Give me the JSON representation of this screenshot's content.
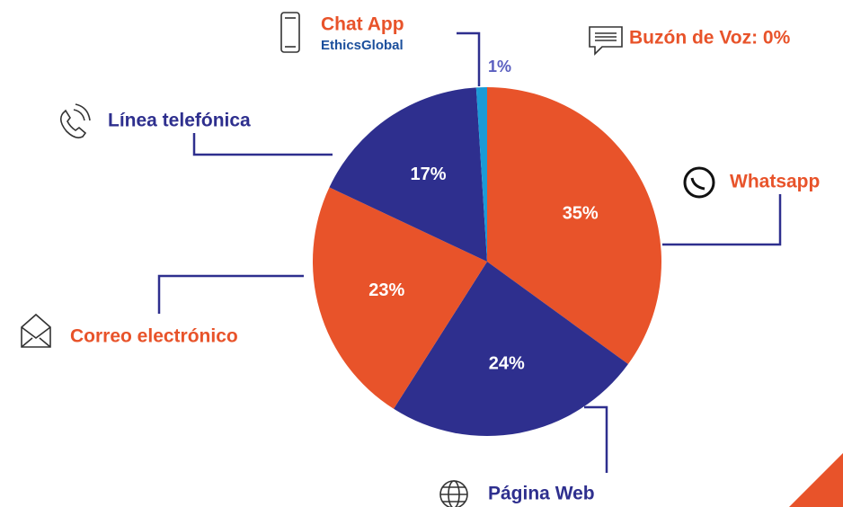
{
  "chart_data": {
    "type": "pie",
    "categories": [
      "Whatsapp",
      "Página Web",
      "Correo electrónico",
      "Línea telefónica",
      "Chat App",
      "Buzón de Voz: 0%"
    ],
    "values": [
      35,
      24,
      23,
      17,
      1,
      0
    ],
    "value_labels": [
      "35%",
      "24%",
      "23%",
      "17%",
      "1%",
      null
    ],
    "colors": [
      "#e8532a",
      "#2e2f8e",
      "#e8532a",
      "#2e2f8e",
      "#1b9ad6",
      "#2e2f8e"
    ],
    "label_colors": [
      "#e8532a",
      "#2e2f8e",
      "#e8532a",
      "#2e2f8e",
      "#e8532a",
      "#e8532a"
    ],
    "annotations": [
      "EthicsGlobal"
    ]
  }
}
